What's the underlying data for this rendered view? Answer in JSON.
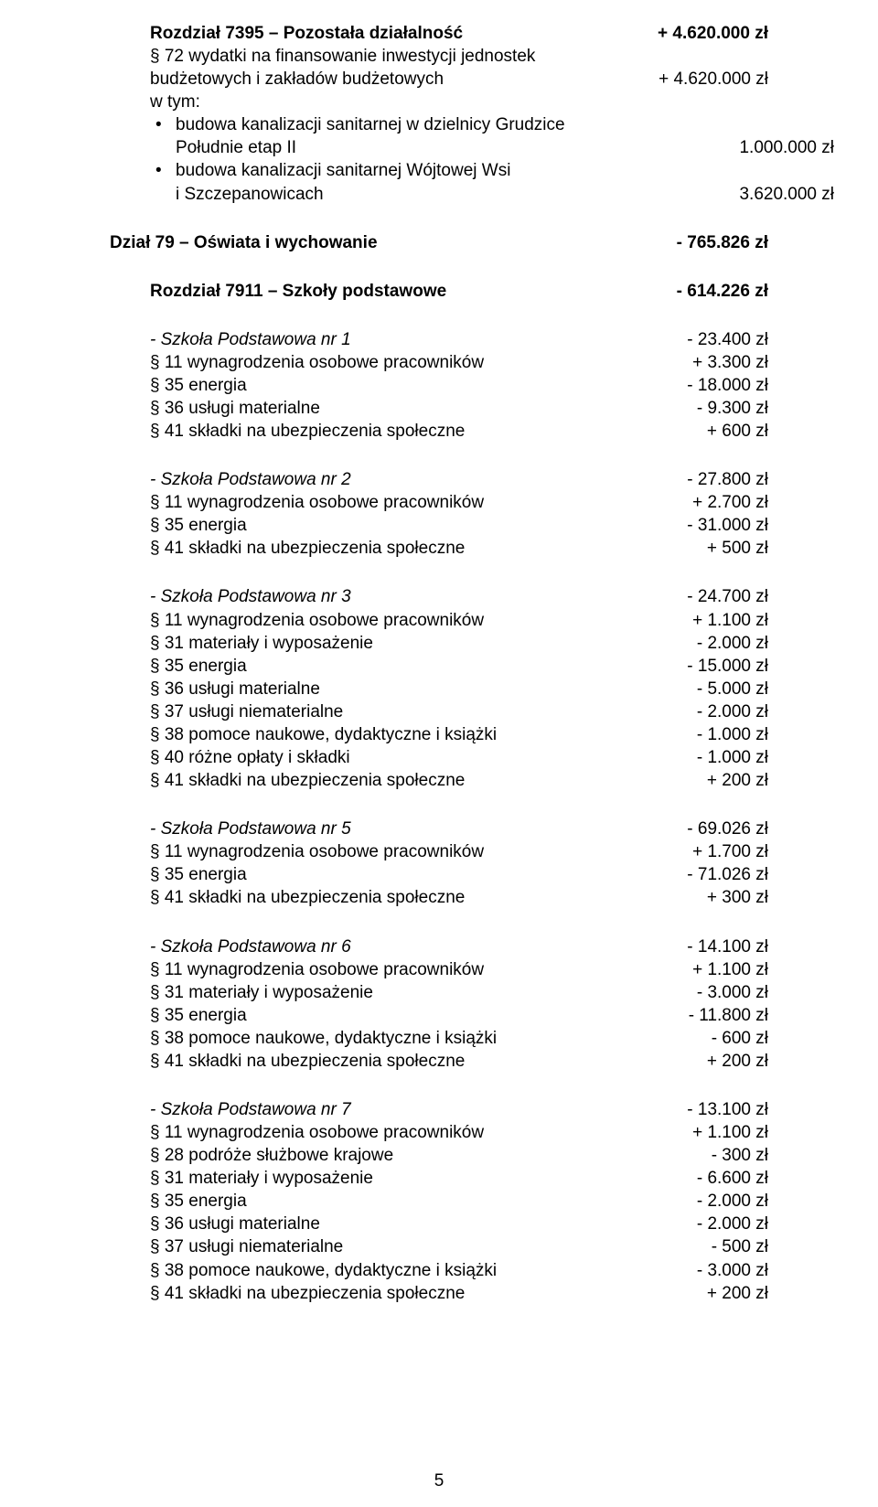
{
  "r7395": {
    "title": "Rozdział 7395 – Pozostała działalność",
    "title_amount": "+ 4.620.000 zł",
    "l1": "§ 72 wydatki na finansowanie inwestycji jednostek",
    "l2": "budżetowych  i zakładów budżetowych",
    "l2_amount": "+ 4.620.000 zł",
    "wtym": "w tym:",
    "b1a": "budowa kanalizacji sanitarnej w dzielnicy Grudzice",
    "b1b": "Południe  etap II",
    "b1_amount": "1.000.000 zł",
    "b2a": "budowa kanalizacji sanitarnej  Wójtowej Wsi",
    "b2b": "i Szczepanowicach",
    "b2_amount": "3.620.000 zł"
  },
  "d79": {
    "title": "Dział 79 – Oświata i wychowanie",
    "amount": "- 765.826 zł"
  },
  "r7911": {
    "title": "Rozdział 7911 – Szkoły podstawowe",
    "amount": "- 614.226 zł"
  },
  "sp1": {
    "title": "- Szkoła Podstawowa nr 1",
    "title_amount": "- 23.400 zł",
    "i11": "§ 11 wynagrodzenia osobowe pracowników",
    "i11_amount": "+ 3.300 zł",
    "i35": "§ 35 energia",
    "i35_amount": "- 18.000 zł",
    "i36": "§ 36 usługi materialne",
    "i36_amount": "- 9.300 zł",
    "i41": "§ 41 składki na ubezpieczenia społeczne",
    "i41_amount": "+ 600 zł"
  },
  "sp2": {
    "title": "- Szkoła Podstawowa nr 2",
    "title_amount": "- 27.800 zł",
    "i11": "§ 11 wynagrodzenia osobowe pracowników",
    "i11_amount": "+ 2.700 zł",
    "i35": "§ 35 energia",
    "i35_amount": "- 31.000 zł",
    "i41": "§ 41 składki na ubezpieczenia społeczne",
    "i41_amount": "+ 500 zł"
  },
  "sp3": {
    "title": "- Szkoła Podstawowa nr 3",
    "title_amount": "- 24.700 zł",
    "i11": "§ 11 wynagrodzenia osobowe pracowników",
    "i11_amount": "+ 1.100 zł",
    "i31": "§ 31 materiały i wyposażenie",
    "i31_amount": "- 2.000 zł",
    "i35": "§ 35 energia",
    "i35_amount": "- 15.000 zł",
    "i36": "§ 36 usługi materialne",
    "i36_amount": "- 5.000 zł",
    "i37": "§ 37 usługi niematerialne",
    "i37_amount": "- 2.000 zł",
    "i38": "§ 38 pomoce naukowe, dydaktyczne i książki",
    "i38_amount": "- 1.000 zł",
    "i40": "§ 40 różne opłaty i składki",
    "i40_amount": "- 1.000 zł",
    "i41": "§ 41 składki na ubezpieczenia społeczne",
    "i41_amount": "+ 200 zł"
  },
  "sp5": {
    "title": "- Szkoła Podstawowa nr 5",
    "title_amount": "- 69.026 zł",
    "i11": "§ 11 wynagrodzenia osobowe pracowników",
    "i11_amount": "+ 1.700 zł",
    "i35": "§ 35 energia",
    "i35_amount": "- 71.026 zł",
    "i41": "§ 41 składki na ubezpieczenia społeczne",
    "i41_amount": "+ 300 zł"
  },
  "sp6": {
    "title": "- Szkoła Podstawowa nr 6",
    "title_amount": "- 14.100 zł",
    "i11": "§ 11 wynagrodzenia osobowe pracowników",
    "i11_amount": "+ 1.100 zł",
    "i31": "§ 31 materiały i wyposażenie",
    "i31_amount": "- 3.000 zł",
    "i35": "§ 35 energia",
    "i35_amount": "- 11.800 zł",
    "i38": "§ 38 pomoce naukowe, dydaktyczne i książki",
    "i38_amount": "- 600 zł",
    "i41": "§ 41 składki na ubezpieczenia społeczne",
    "i41_amount": "+ 200 zł"
  },
  "sp7": {
    "title": "- Szkoła Podstawowa nr 7",
    "title_amount": "- 13.100 zł",
    "i11": "§ 11 wynagrodzenia osobowe pracowników",
    "i11_amount": "+ 1.100 zł",
    "i28": "§ 28 podróże służbowe krajowe",
    "i28_amount": "- 300 zł",
    "i31": "§ 31 materiały i wyposażenie",
    "i31_amount": "- 6.600 zł",
    "i35": "§ 35 energia",
    "i35_amount": "- 2.000 zł",
    "i36": "§ 36 usługi materialne",
    "i36_amount": "- 2.000 zł",
    "i37": "§ 37 usługi niematerialne",
    "i37_amount": "- 500 zł",
    "i38": "§ 38 pomoce naukowe, dydaktyczne i książki",
    "i38_amount": "- 3.000 zł",
    "i41": "§ 41 składki na ubezpieczenia społeczne",
    "i41_amount": "+ 200 zł"
  },
  "page_number": "5"
}
